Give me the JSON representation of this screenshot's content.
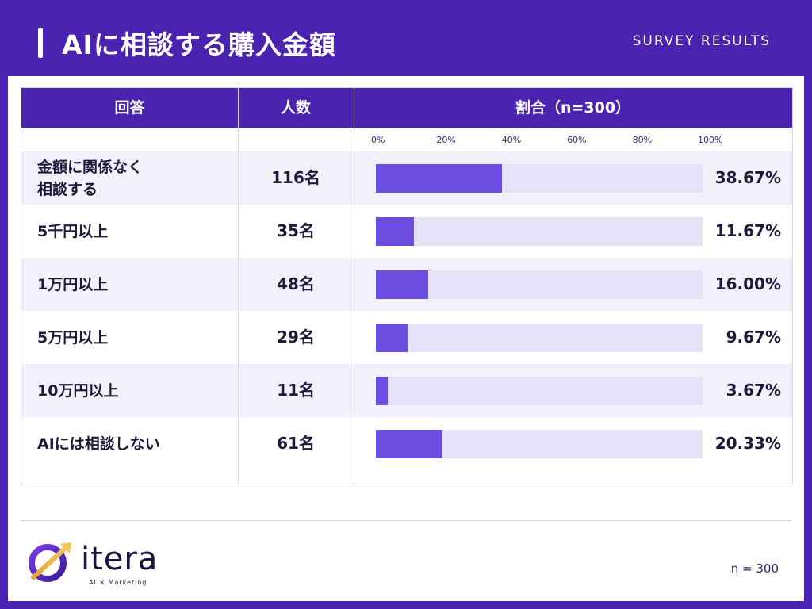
{
  "header": {
    "title": "AIに相談する購入金額",
    "subtitle": "SURVEY RESULTS"
  },
  "table": {
    "headers": [
      "回答",
      "人数",
      "割合（n=300）"
    ],
    "ticks": [
      "0%",
      "20%",
      "40%",
      "60%",
      "80%",
      "100%"
    ]
  },
  "chart_data": {
    "type": "bar",
    "orientation": "horizontal",
    "title": "AIに相談する購入金額",
    "categories": [
      "金額に関係なく相談する",
      "5千円以上",
      "1万円以上",
      "5万円以上",
      "10万円以上",
      "AIには相談しない"
    ],
    "category_lines": [
      [
        "金額に関係なく",
        "相談する"
      ],
      [
        "5千円以上"
      ],
      [
        "1万円以上"
      ],
      [
        "5万円以上"
      ],
      [
        "10万円以上"
      ],
      [
        "AIには相談しない"
      ]
    ],
    "counts": [
      "116名",
      "35名",
      "48名",
      "29名",
      "11名",
      "61名"
    ],
    "values": [
      38.67,
      11.67,
      16.0,
      9.67,
      3.67,
      20.33
    ],
    "value_labels": [
      "38.67%",
      "11.67%",
      "16.00%",
      "9.67%",
      "3.67%",
      "20.33%"
    ],
    "xlim": [
      0,
      100
    ],
    "colors": {
      "bar": "#6b4de0",
      "track": "#e4e3f7",
      "header": "#4a23b0"
    }
  },
  "logo": {
    "word": "itera",
    "tagline": "AI × Marketing"
  },
  "footer": {
    "n_label": "n = 300"
  }
}
